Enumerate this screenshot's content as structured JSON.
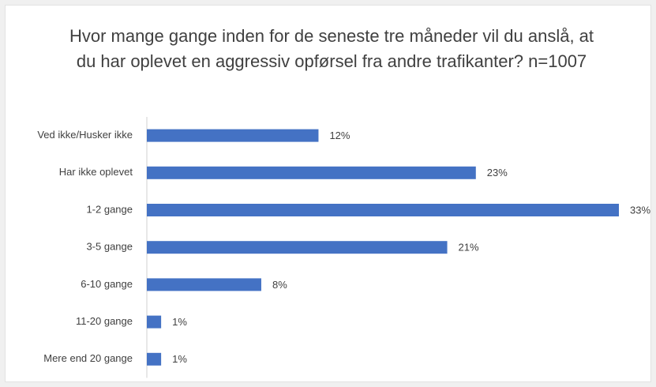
{
  "chart_data": {
    "type": "bar",
    "orientation": "horizontal",
    "title": "Hvor mange gange inden for de seneste tre måneder vil du anslå, at du har oplevet en aggressiv opførsel fra andre trafikanter? n=1007",
    "categories": [
      "Ved ikke/Husker ikke",
      "Har ikke oplevet",
      "1-2 gange",
      "3-5 gange",
      "6-10 gange",
      "11-20 gange",
      "Mere end 20 gange"
    ],
    "values": [
      12,
      23,
      33,
      21,
      8,
      1,
      1
    ],
    "value_labels": [
      "12%",
      "23%",
      "33%",
      "21%",
      "8%",
      "1%",
      "1%"
    ],
    "color": "#4472c4"
  }
}
